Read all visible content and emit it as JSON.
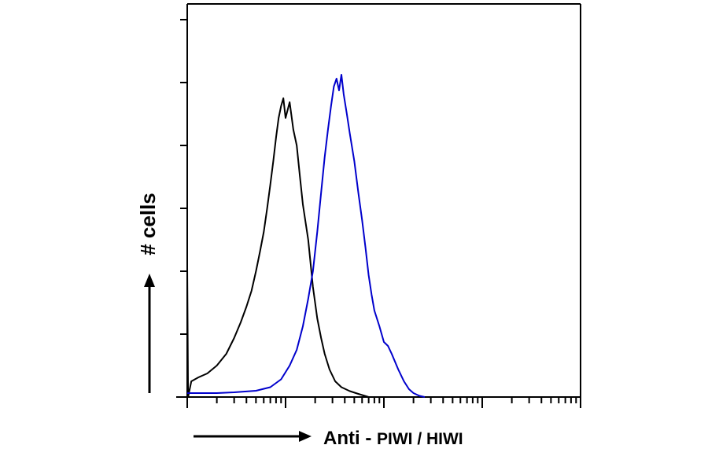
{
  "chart_data": {
    "type": "line",
    "title": "",
    "xlabel": {
      "prefix": "Anti - ",
      "antigen": "PIWI / HIWI"
    },
    "ylabel": "# cells",
    "xscale": "log",
    "x_decades": [
      1,
      10,
      100,
      1000,
      10000
    ],
    "xlim": [
      1,
      10000
    ],
    "ylim": [
      0,
      100
    ],
    "grid": false,
    "legend": "none",
    "series": [
      {
        "color": "#000000",
        "points": [
          [
            1.0,
            33
          ],
          [
            1.02,
            0
          ],
          [
            1.1,
            4
          ],
          [
            1.3,
            5
          ],
          [
            1.6,
            6
          ],
          [
            2.0,
            8
          ],
          [
            2.5,
            11
          ],
          [
            3.0,
            15
          ],
          [
            3.5,
            19
          ],
          [
            4.0,
            23
          ],
          [
            4.5,
            27
          ],
          [
            5.0,
            32
          ],
          [
            5.5,
            37
          ],
          [
            6.0,
            42
          ],
          [
            6.5,
            48
          ],
          [
            7.0,
            54
          ],
          [
            7.5,
            60
          ],
          [
            8.0,
            66
          ],
          [
            8.5,
            71
          ],
          [
            9.0,
            74
          ],
          [
            9.5,
            76
          ],
          [
            10.0,
            71
          ],
          [
            11.0,
            75
          ],
          [
            12.0,
            68
          ],
          [
            13.0,
            64
          ],
          [
            14.0,
            56
          ],
          [
            15.0,
            49
          ],
          [
            17.0,
            40
          ],
          [
            19.0,
            28
          ],
          [
            21.0,
            20
          ],
          [
            23.0,
            15
          ],
          [
            25.0,
            11
          ],
          [
            28.0,
            7
          ],
          [
            32.0,
            4
          ],
          [
            37.0,
            2.5
          ],
          [
            45.0,
            1.5
          ],
          [
            55.0,
            0.8
          ],
          [
            70.0,
            0
          ]
        ]
      },
      {
        "color": "#0000cc",
        "points": [
          [
            1.0,
            1
          ],
          [
            2.0,
            1
          ],
          [
            3.0,
            1.2
          ],
          [
            5.0,
            1.6
          ],
          [
            7.0,
            2.5
          ],
          [
            9.0,
            4.5
          ],
          [
            11.0,
            8
          ],
          [
            13.0,
            12
          ],
          [
            15.0,
            18
          ],
          [
            17.0,
            25
          ],
          [
            19.0,
            32
          ],
          [
            21.0,
            42
          ],
          [
            23.0,
            52
          ],
          [
            25.0,
            61
          ],
          [
            27.0,
            68
          ],
          [
            29.0,
            74
          ],
          [
            31.0,
            79
          ],
          [
            33.0,
            81
          ],
          [
            35.0,
            78
          ],
          [
            37.0,
            82
          ],
          [
            39.0,
            77
          ],
          [
            42.0,
            72
          ],
          [
            45.0,
            67
          ],
          [
            50.0,
            60
          ],
          [
            55.0,
            52
          ],
          [
            60.0,
            45
          ],
          [
            65.0,
            38
          ],
          [
            70.0,
            31
          ],
          [
            75.0,
            26
          ],
          [
            80.0,
            22
          ],
          [
            90.0,
            18
          ],
          [
            100.0,
            14
          ],
          [
            110.0,
            13
          ],
          [
            120.0,
            11
          ],
          [
            140.0,
            7
          ],
          [
            160.0,
            4
          ],
          [
            180.0,
            2
          ],
          [
            200.0,
            1
          ],
          [
            230.0,
            0.3
          ],
          [
            260.0,
            0
          ]
        ]
      }
    ]
  }
}
